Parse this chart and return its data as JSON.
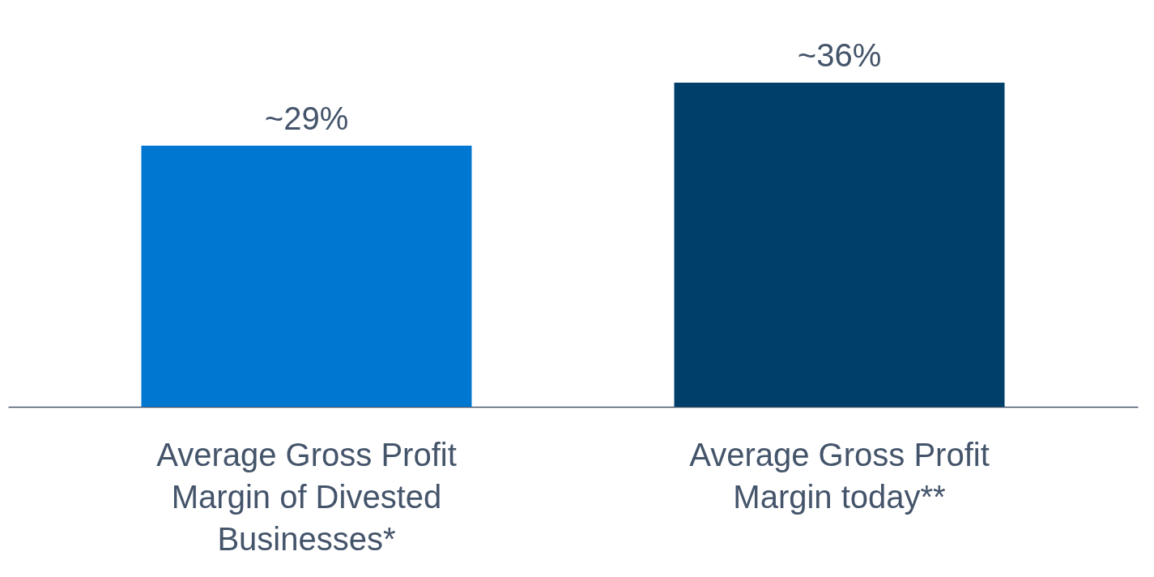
{
  "chart_data": {
    "type": "bar",
    "categories": [
      "Average Gross Profit Margin of Divested Businesses*",
      "Average Gross Profit Margin today**"
    ],
    "values": [
      29,
      36
    ],
    "colors": [
      "#0077d0",
      "#003f69"
    ],
    "value_labels": [
      "~29%",
      "~36%"
    ]
  }
}
